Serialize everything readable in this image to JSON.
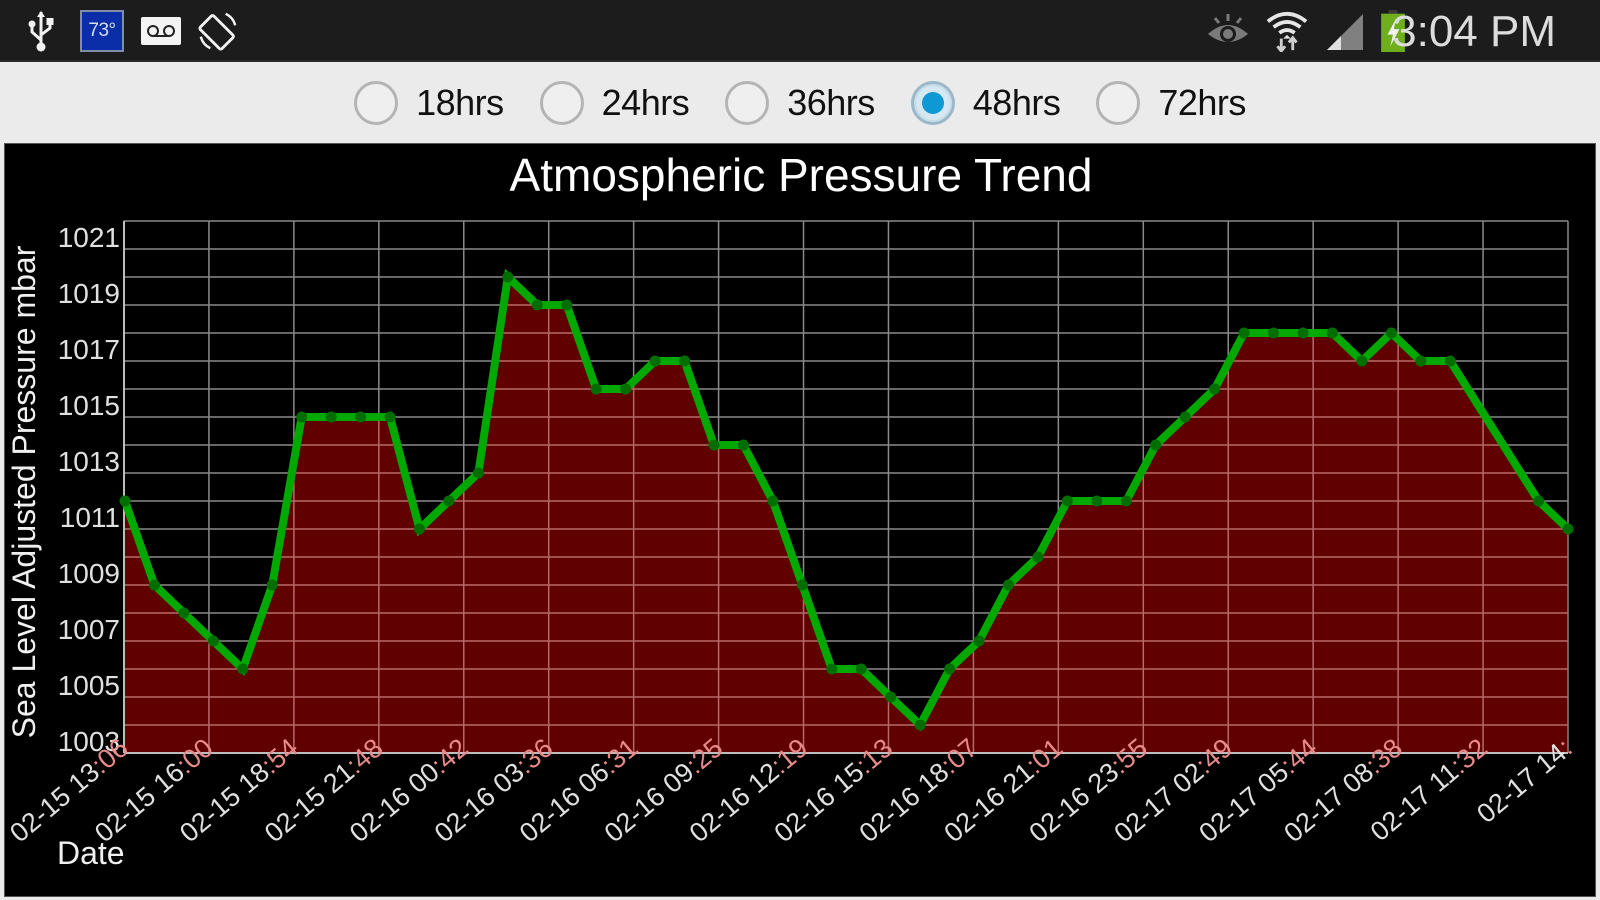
{
  "status_bar": {
    "left_icons": [
      "usb-icon",
      "temperature-badge",
      "voicemail-icon",
      "screen-rotation-icon"
    ],
    "temperature": "73°",
    "right_icons": [
      "eye-icon",
      "wifi-icon",
      "signal-icon",
      "battery-charging-icon"
    ],
    "time": "3:04 PM",
    "battery_color": "#6fae1d"
  },
  "range_selector": {
    "options": [
      {
        "label": "18hrs",
        "checked": false
      },
      {
        "label": "24hrs",
        "checked": false
      },
      {
        "label": "36hrs",
        "checked": false
      },
      {
        "label": "48hrs",
        "checked": true
      },
      {
        "label": "72hrs",
        "checked": false
      }
    ],
    "accent_color": "#0e98d4"
  },
  "chart": {
    "title": "Atmospheric Pressure Trend",
    "ylabel": "Sea Level Adjusted Pressure mbar",
    "xlabel": "Date",
    "colors": {
      "line": "#00a800",
      "marker": "#006e00",
      "fill": "#600000",
      "grid": "#8a8a8a",
      "grid_on_fill": "#b86a6a",
      "tick_text": "#e0e0e0",
      "tick_text_on_fill": "#e88a8a"
    }
  },
  "chart_data": {
    "type": "area",
    "title": "Atmospheric Pressure Trend",
    "xlabel": "Date",
    "ylabel": "Sea Level Adjusted Pressure mbar",
    "ylim": [
      1003,
      1022
    ],
    "yticks": [
      1003,
      1005,
      1007,
      1009,
      1011,
      1013,
      1015,
      1017,
      1019,
      1021
    ],
    "xtick_labels": [
      "02-15 13:06",
      "02-15 16:00",
      "02-15 18:54",
      "02-15 21:48",
      "02-16 00:42",
      "02-16 03:36",
      "02-16 06:31",
      "02-16 09:25",
      "02-16 12:19",
      "02-16 15:13",
      "02-16 18:07",
      "02-16 21:01",
      "02-16 23:55",
      "02-17 02:49",
      "02-17 05:44",
      "02-17 08:38",
      "02-17 11:32",
      "02-17 14:"
    ],
    "grid": true,
    "legend": "none",
    "series": [
      {
        "name": "Sea Level Adjusted Pressure",
        "x_index": [
          0,
          1,
          2,
          3,
          4,
          5,
          6,
          7,
          8,
          9,
          10,
          11,
          12,
          13,
          14,
          15,
          16,
          17,
          18,
          19,
          20,
          21,
          22,
          23,
          24,
          25,
          26,
          27,
          28,
          29,
          30,
          31,
          32,
          33,
          34,
          35,
          36,
          37,
          38,
          39,
          40,
          41,
          42,
          43,
          44,
          45,
          48,
          49
        ],
        "values": [
          1012,
          1009,
          1008,
          1007,
          1006,
          1009,
          1015,
          1015,
          1015,
          1015,
          1011,
          1012,
          1013,
          1020,
          1019,
          1019,
          1016,
          1016,
          1017,
          1017,
          1014,
          1014,
          1012,
          1009,
          1006,
          1006,
          1005,
          1004,
          1006,
          1007,
          1009,
          1010,
          1012,
          1012,
          1012,
          1014,
          1015,
          1016,
          1018,
          1018,
          1018,
          1018,
          1017,
          1018,
          1017,
          1017,
          1012,
          1011
        ]
      }
    ]
  }
}
